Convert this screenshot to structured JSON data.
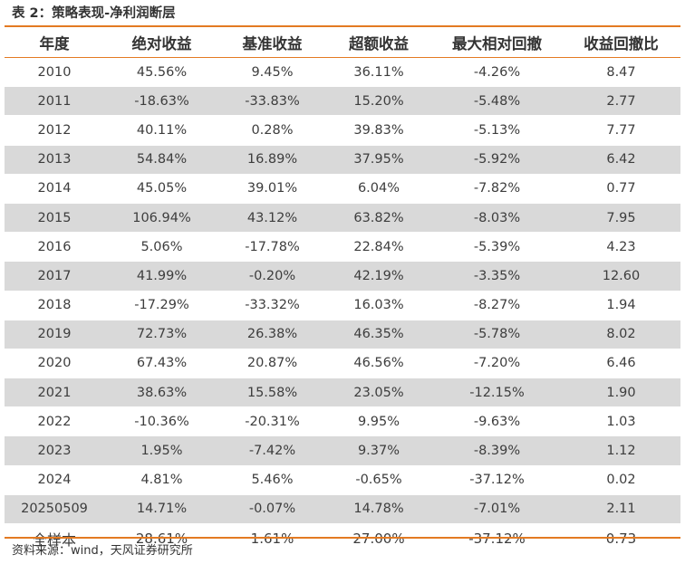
{
  "title": "表 2：策略表现-净利润断层",
  "columns": [
    "年度",
    "绝对收益",
    "基准收益",
    "超额收益",
    "最大相对回撤",
    "收益回撤比"
  ],
  "rows": [
    [
      "2010",
      "45.56%",
      "9.45%",
      "36.11%",
      "-4.26%",
      "8.47"
    ],
    [
      "2011",
      "-18.63%",
      "-33.83%",
      "15.20%",
      "-5.48%",
      "2.77"
    ],
    [
      "2012",
      "40.11%",
      "0.28%",
      "39.83%",
      "-5.13%",
      "7.77"
    ],
    [
      "2013",
      "54.84%",
      "16.89%",
      "37.95%",
      "-5.92%",
      "6.42"
    ],
    [
      "2014",
      "45.05%",
      "39.01%",
      "6.04%",
      "-7.82%",
      "0.77"
    ],
    [
      "2015",
      "106.94%",
      "43.12%",
      "63.82%",
      "-8.03%",
      "7.95"
    ],
    [
      "2016",
      "5.06%",
      "-17.78%",
      "22.84%",
      "-5.39%",
      "4.23"
    ],
    [
      "2017",
      "41.99%",
      "-0.20%",
      "42.19%",
      "-3.35%",
      "12.60"
    ],
    [
      "2018",
      "-17.29%",
      "-33.32%",
      "16.03%",
      "-8.27%",
      "1.94"
    ],
    [
      "2019",
      "72.73%",
      "26.38%",
      "46.35%",
      "-5.78%",
      "8.02"
    ],
    [
      "2020",
      "67.43%",
      "20.87%",
      "46.56%",
      "-7.20%",
      "6.46"
    ],
    [
      "2021",
      "38.63%",
      "15.58%",
      "23.05%",
      "-12.15%",
      "1.90"
    ],
    [
      "2022",
      "-10.36%",
      "-20.31%",
      "9.95%",
      "-9.63%",
      "1.03"
    ],
    [
      "2023",
      "1.95%",
      "-7.42%",
      "9.37%",
      "-8.39%",
      "1.12"
    ],
    [
      "2024",
      "4.81%",
      "5.46%",
      "-0.65%",
      "-37.12%",
      "0.02"
    ],
    [
      "20250509",
      "14.71%",
      "-0.07%",
      "14.78%",
      "-7.01%",
      "2.11"
    ],
    [
      "全样本",
      "28.61%",
      "1.61%",
      "27.00%",
      "-37.12%",
      "0.73"
    ]
  ],
  "source": "资料来源：wind，天风证券研究所",
  "colors": {
    "rule": "#e37a22",
    "stripe": "#d9d9d9"
  }
}
